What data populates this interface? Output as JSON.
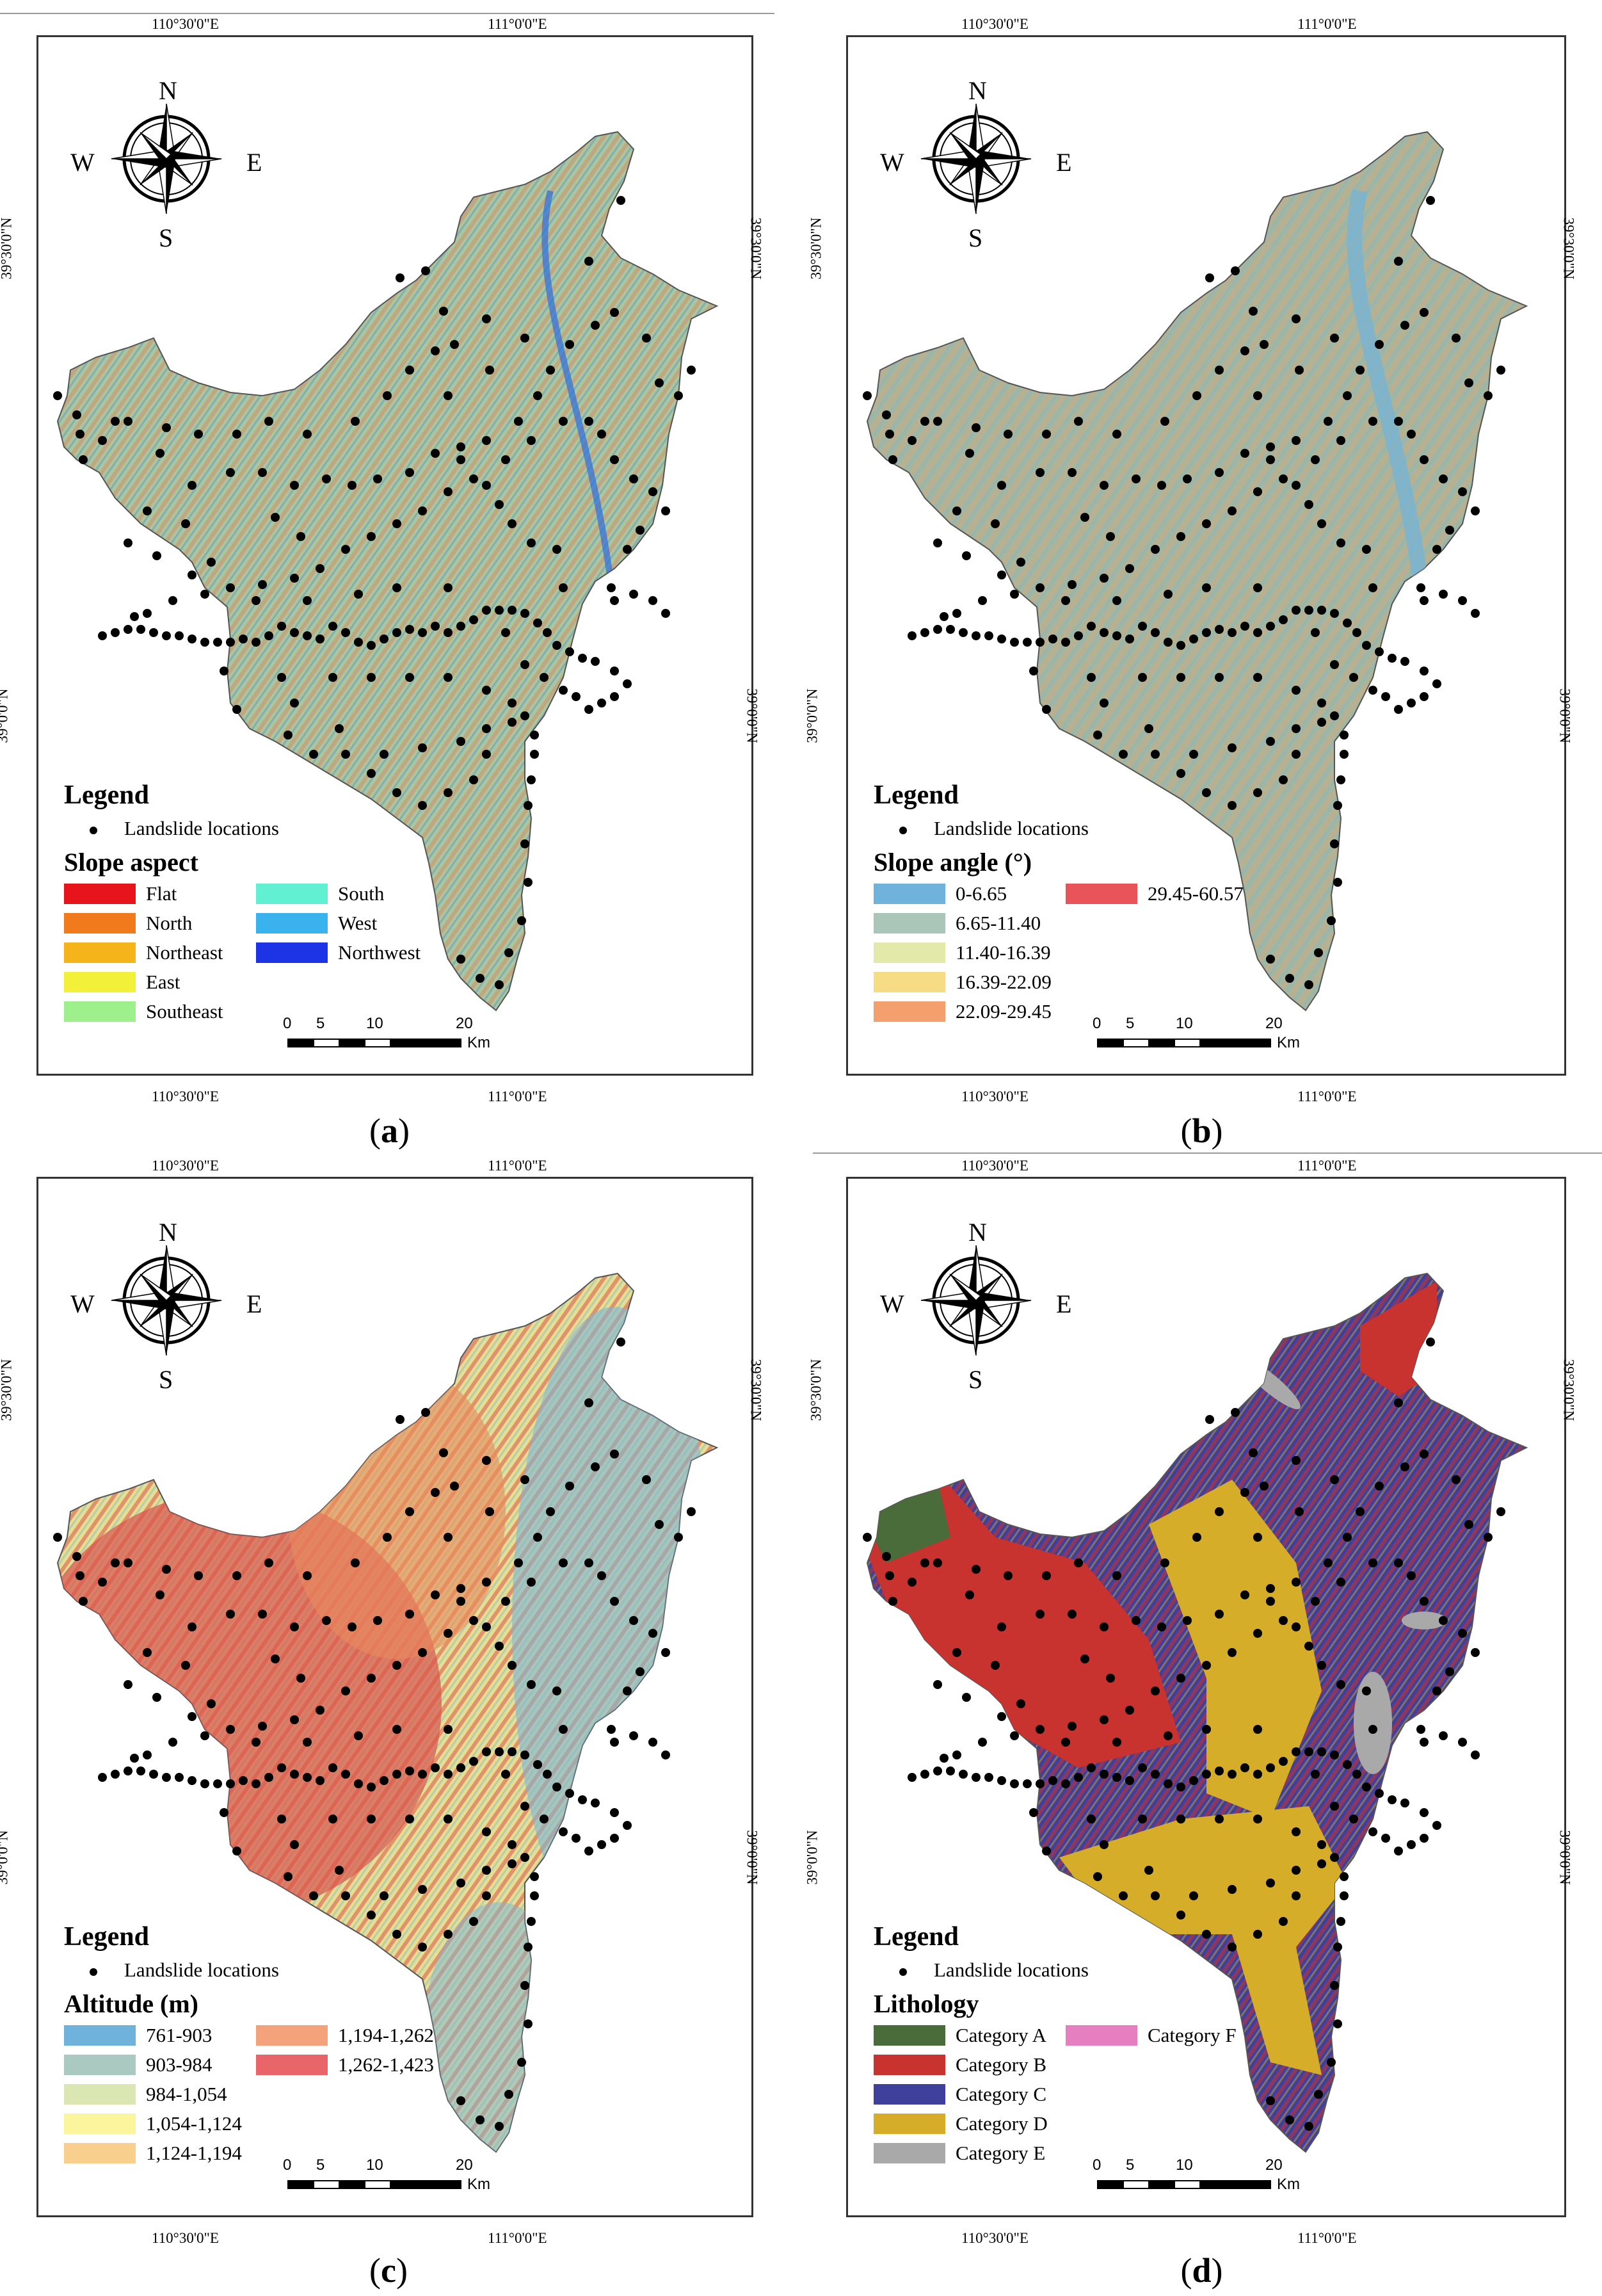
{
  "panels": [
    {
      "id": "a",
      "caption": "a",
      "legend_title": "Legend",
      "points_label": "Landslide locations",
      "layer_title": "Slope aspect",
      "classes": [
        {
          "label": "Flat",
          "color": "#e8141c"
        },
        {
          "label": "North",
          "color": "#f07a1c"
        },
        {
          "label": "Northeast",
          "color": "#f5b41a"
        },
        {
          "label": "East",
          "color": "#f3f03a"
        },
        {
          "label": "Southeast",
          "color": "#9ef08c"
        },
        {
          "label": "South",
          "color": "#62f0d2"
        },
        {
          "label": "West",
          "color": "#39b2ee"
        },
        {
          "label": "Northwest",
          "color": "#1c34e6"
        }
      ],
      "fill_main": "#a9c79a",
      "fill_alt": "#d28a6e",
      "fill_accent": "#5b8bd6"
    },
    {
      "id": "b",
      "caption": "b",
      "legend_title": "Legend",
      "points_label": "Landslide locations",
      "layer_title": "Slope angle (°)",
      "classes": [
        {
          "label": "0-6.65",
          "color": "#6fb3dc"
        },
        {
          "label": "6.65-11.40",
          "color": "#a9c6b8"
        },
        {
          "label": "11.40-16.39",
          "color": "#e3e9a9"
        },
        {
          "label": "16.39-22.09",
          "color": "#f7dc86"
        },
        {
          "label": "22.09-29.45",
          "color": "#f3a06e"
        },
        {
          "label": "29.45-60.57",
          "color": "#e9535a"
        }
      ],
      "fill_main": "#a7b59a",
      "fill_alt": "#c9a98a",
      "fill_accent": "#7fb6d4"
    },
    {
      "id": "c",
      "caption": "c",
      "legend_title": "Legend",
      "points_label": "Landslide locations",
      "layer_title": "Altitude (m)",
      "classes": [
        {
          "label": "761-903",
          "color": "#6fb3dc"
        },
        {
          "label": "903-984",
          "color": "#a9c9c1"
        },
        {
          "label": "984-1,054",
          "color": "#dbe7b3"
        },
        {
          "label": "1,054-1,124",
          "color": "#fbf59e"
        },
        {
          "label": "1,124-1,194",
          "color": "#f8cf8c"
        },
        {
          "label": "1,194-1,262",
          "color": "#f3a27b"
        },
        {
          "label": "1,262-1,423",
          "color": "#e8666a"
        }
      ],
      "fill_main": "#e7de90",
      "fill_alt": "#d9544f",
      "fill_accent": "#7fb6d4"
    },
    {
      "id": "d",
      "caption": "d",
      "legend_title": "Legend",
      "points_label": "Landslide locations",
      "layer_title": "Lithology",
      "classes": [
        {
          "label": "Category A",
          "color": "#4a6b3a"
        },
        {
          "label": "Category B",
          "color": "#c8322f"
        },
        {
          "label": "Category C",
          "color": "#3f3f9c"
        },
        {
          "label": "Category D",
          "color": "#d6ad28"
        },
        {
          "label": "Category E",
          "color": "#a9a9a9"
        },
        {
          "label": "Category F",
          "color": "#e67fc0"
        }
      ],
      "fill_main": "#3f3f9c",
      "fill_alt": "#c8322f",
      "fill_accent": "#d6ad28"
    }
  ],
  "grid_labels": {
    "lon_left": "110°30'0\"E",
    "lon_right": "111°0'0\"E",
    "lat_top": "39°30'0\"N",
    "lat_bottom": "39°0'0\"N"
  },
  "compass": {
    "n": "N",
    "s": "S",
    "e": "E",
    "w": "W"
  },
  "scale": {
    "ticks": [
      "0",
      "5",
      "10",
      "20"
    ],
    "unit": "Km"
  }
}
